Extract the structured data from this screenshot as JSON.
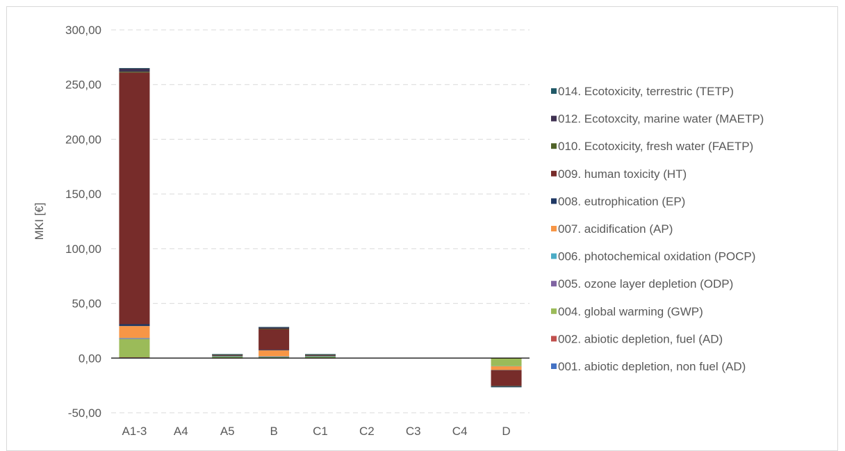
{
  "chart_data": {
    "type": "bar",
    "stacked": true,
    "ylabel": "MKI [€]",
    "ylim": [
      -50,
      300
    ],
    "yticks": [
      "-50,00",
      "0,00",
      "50,00",
      "100,00",
      "150,00",
      "200,00",
      "250,00",
      "300,00"
    ],
    "ytick_values": [
      -50,
      0,
      50,
      100,
      150,
      200,
      250,
      300
    ],
    "negative_tick_color": "#ff0000",
    "grid": "horizontal dashed",
    "legend_position": "right",
    "categories": [
      "A1-3",
      "A4",
      "A5",
      "B",
      "C1",
      "C2",
      "C3",
      "C4",
      "D"
    ],
    "series": [
      {
        "name": "001. abiotic depletion, non fuel (AD)",
        "color": "#4472c4",
        "values": [
          0.2,
          0,
          0.05,
          0.1,
          0.05,
          0,
          0,
          0,
          -0.1
        ]
      },
      {
        "name": "002. abiotic depletion, fuel (AD)",
        "color": "#c0504d",
        "values": [
          0.5,
          0,
          0.05,
          0.2,
          0.05,
          0,
          0,
          0,
          -0.2
        ]
      },
      {
        "name": "004. global warming (GWP)",
        "color": "#9bbb59",
        "values": [
          17.0,
          0,
          1.5,
          1.0,
          1.5,
          0,
          0,
          0,
          -7.0
        ]
      },
      {
        "name": "005. ozone layer depletion (ODP)",
        "color": "#8064a2",
        "values": [
          0.1,
          0,
          0,
          0.05,
          0,
          0,
          0,
          0,
          0
        ]
      },
      {
        "name": "006. photochemical oxidation (POCP)",
        "color": "#4bacc6",
        "values": [
          0.5,
          0,
          0.05,
          0.2,
          0.05,
          0,
          0,
          0,
          -0.2
        ]
      },
      {
        "name": "007. acidification (AP)",
        "color": "#f79646",
        "values": [
          11.0,
          0,
          0.6,
          5.5,
          0.6,
          0,
          0,
          0,
          -3.5
        ]
      },
      {
        "name": "008. eutrophication (EP)",
        "color": "#1f3864",
        "values": [
          1.7,
          0,
          0.1,
          0.5,
          0.1,
          0,
          0,
          0,
          -0.3
        ]
      },
      {
        "name": "009. human toxicity (HT)",
        "color": "#772c2a",
        "values": [
          230.0,
          0,
          0.8,
          19.0,
          0.8,
          0,
          0,
          0,
          -14.0
        ]
      },
      {
        "name": "010. Ecotoxicity, fresh water (FAETP)",
        "color": "#4f6228",
        "values": [
          0.8,
          0,
          0.1,
          0.3,
          0.1,
          0,
          0,
          0,
          -0.3
        ]
      },
      {
        "name": "012. Ecotoxcity, marine water (MAETP)",
        "color": "#3f3151",
        "values": [
          3.0,
          0,
          0.3,
          1.5,
          0.3,
          0,
          0,
          0,
          -0.6
        ]
      },
      {
        "name": "014. Ecotoxicity, terrestric (TETP)",
        "color": "#215967",
        "values": [
          0.3,
          0,
          0.05,
          0.1,
          0.05,
          0,
          0,
          0,
          -0.1
        ]
      }
    ]
  }
}
